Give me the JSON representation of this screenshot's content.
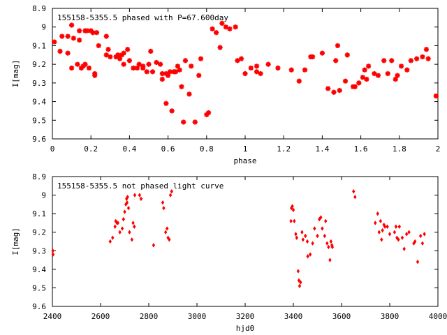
{
  "chart_data": [
    {
      "type": "scatter",
      "title": "155158-5355.5 phased with P=67.600day",
      "xlabel": "phase",
      "ylabel": "I[mag]",
      "xlim": [
        0,
        2
      ],
      "ylim": [
        9.6,
        8.9
      ],
      "y_inverted": true,
      "xticks": [
        "0",
        "0.2",
        "0.4",
        "0.6",
        "0.8",
        "1",
        "1.2",
        "1.4",
        "1.6",
        "1.8",
        "2"
      ],
      "yticks": [
        "8.9",
        "9",
        "9.1",
        "9.2",
        "9.3",
        "9.4",
        "9.5",
        "9.6"
      ],
      "marker": "asterisk",
      "color": "#ff0000",
      "grid": false,
      "x": [
        0.01,
        0.04,
        0.05,
        0.08,
        0.08,
        0.1,
        0.1,
        0.11,
        0.13,
        0.14,
        0.14,
        0.15,
        0.16,
        0.17,
        0.17,
        0.18,
        0.19,
        0.2,
        0.21,
        0.22,
        0.22,
        0.23,
        0.24,
        0.28,
        0.28,
        0.29,
        0.3,
        0.33,
        0.34,
        0.35,
        0.36,
        0.37,
        0.37,
        0.39,
        0.4,
        0.42,
        0.44,
        0.45,
        0.47,
        0.47,
        0.49,
        0.5,
        0.51,
        0.52,
        0.54,
        0.56,
        0.57,
        0.57,
        0.59,
        0.59,
        0.6,
        0.61,
        0.62,
        0.63,
        0.64,
        0.65,
        0.66,
        0.67,
        0.68,
        0.69,
        0.71,
        0.72,
        0.74,
        0.76,
        0.77,
        0.8,
        0.81,
        0.83,
        0.85,
        0.87,
        0.88,
        0.9,
        0.92,
        0.95,
        0.96,
        0.98,
        1.0,
        1.03,
        1.06,
        1.06,
        1.08,
        1.12,
        1.17,
        1.24,
        1.28,
        1.31,
        1.34,
        1.35,
        1.4,
        1.43,
        1.46,
        1.47,
        1.48,
        1.49,
        1.52,
        1.53,
        1.56,
        1.57,
        1.59,
        1.61,
        1.62,
        1.63,
        1.64,
        1.67,
        1.69,
        1.72,
        1.74,
        1.76,
        1.78,
        1.79,
        1.81,
        1.84,
        1.86,
        1.89,
        1.92,
        1.94,
        1.95,
        1.99
      ],
      "y": [
        9.08,
        9.13,
        9.05,
        9.05,
        9.14,
        8.99,
        9.22,
        9.06,
        9.2,
        9.02,
        9.07,
        9.22,
        9.21,
        9.2,
        9.02,
        9.02,
        9.22,
        9.02,
        9.03,
        9.25,
        9.26,
        9.03,
        9.1,
        9.05,
        9.15,
        9.12,
        9.16,
        9.16,
        9.15,
        9.17,
        9.15,
        9.2,
        9.14,
        9.12,
        9.18,
        9.22,
        9.22,
        9.2,
        9.21,
        9.22,
        9.24,
        9.2,
        9.13,
        9.24,
        9.19,
        9.2,
        9.28,
        9.25,
        9.41,
        9.25,
        9.26,
        9.24,
        9.45,
        9.24,
        9.24,
        9.21,
        9.23,
        9.32,
        9.51,
        9.18,
        9.36,
        9.21,
        9.51,
        9.26,
        9.17,
        9.47,
        9.46,
        9.01,
        9.03,
        9.11,
        8.98,
        9.0,
        9.01,
        9.0,
        9.18,
        9.17,
        9.25,
        9.22,
        9.21,
        9.24,
        9.25,
        9.2,
        9.22,
        9.23,
        9.29,
        9.23,
        9.16,
        9.16,
        9.14,
        9.33,
        9.35,
        9.18,
        9.1,
        9.34,
        9.29,
        9.15,
        9.32,
        9.32,
        9.3,
        9.27,
        9.23,
        9.28,
        9.21,
        9.25,
        9.26,
        9.18,
        9.25,
        9.18,
        9.28,
        9.26,
        9.21,
        9.23,
        9.18,
        9.17,
        9.16,
        9.12,
        9.17,
        9.37
      ]
    },
    {
      "type": "scatter",
      "title": "155158-5355.5 not phased light curve",
      "xlabel": "hjd0",
      "ylabel": "I[mag]",
      "xlim": [
        2400,
        4000
      ],
      "ylim": [
        9.6,
        8.9
      ],
      "y_inverted": true,
      "xticks": [
        "2400",
        "2600",
        "2800",
        "3000",
        "3200",
        "3400",
        "3600",
        "3800",
        "4000"
      ],
      "yticks": [
        "8.9",
        "9",
        "9.1",
        "9.2",
        "9.3",
        "9.4",
        "9.5",
        "9.6"
      ],
      "marker": "diamond",
      "color": "#ff0000",
      "grid": false,
      "x": [
        2402,
        2403,
        2640,
        2650,
        2660,
        2663,
        2668,
        2672,
        2680,
        2690,
        2695,
        2700,
        2705,
        2708,
        2710,
        2712,
        2716,
        2720,
        2730,
        2735,
        2740,
        2742,
        2762,
        2768,
        2820,
        2858,
        2862,
        2870,
        2876,
        2880,
        2885,
        2890,
        2895,
        3390,
        3392,
        3396,
        3400,
        3404,
        3410,
        3414,
        3420,
        3423,
        3426,
        3430,
        3436,
        3440,
        3450,
        3458,
        3460,
        3470,
        3480,
        3488,
        3500,
        3508,
        3514,
        3520,
        3530,
        3534,
        3540,
        3546,
        3552,
        3556,
        3560,
        3562,
        3650,
        3656,
        3740,
        3750,
        3756,
        3762,
        3766,
        3770,
        3776,
        3780,
        3790,
        3800,
        3820,
        3826,
        3830,
        3836,
        3840,
        3852,
        3860,
        3870,
        3880,
        3900,
        3905,
        3916,
        3928,
        3936,
        3944
      ],
      "y": [
        9.3,
        9.32,
        9.25,
        9.23,
        9.17,
        9.14,
        9.15,
        9.15,
        9.2,
        9.18,
        9.13,
        9.09,
        9.05,
        9.02,
        9.04,
        9.01,
        9.07,
        9.2,
        9.24,
        9.15,
        9.17,
        9.0,
        9.0,
        9.02,
        9.27,
        9.04,
        9.07,
        9.2,
        9.18,
        9.23,
        9.24,
        9.0,
        8.98,
        9.14,
        9.07,
        9.06,
        9.08,
        9.14,
        9.21,
        9.23,
        9.41,
        9.46,
        9.49,
        9.47,
        9.2,
        9.24,
        9.22,
        9.25,
        9.33,
        9.32,
        9.26,
        9.18,
        9.22,
        9.13,
        9.12,
        9.18,
        9.22,
        9.14,
        9.26,
        9.28,
        9.35,
        9.25,
        9.27,
        9.28,
        8.98,
        9.01,
        9.15,
        9.1,
        9.2,
        9.14,
        9.24,
        9.19,
        9.16,
        9.17,
        9.17,
        9.21,
        9.2,
        9.17,
        9.23,
        9.24,
        9.17,
        9.23,
        9.29,
        9.21,
        9.2,
        9.26,
        9.25,
        9.36,
        9.22,
        9.26,
        9.21
      ]
    }
  ]
}
